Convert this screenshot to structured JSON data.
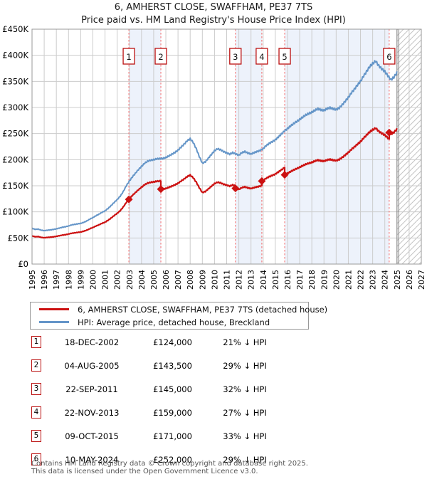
{
  "title": "6, AMHERST CLOSE, SWAFFHAM, PE37 7TS",
  "subtitle": "Price paid vs. HM Land Registry's House Price Index (HPI)",
  "legend": [
    {
      "label": "6, AMHERST CLOSE, SWAFFHAM, PE37 7TS (detached house)",
      "color": "#cc1111"
    },
    {
      "label": "HPI: Average price, detached house, Breckland",
      "color": "#6495c8"
    }
  ],
  "sales": [
    {
      "n": "1",
      "date": "18-DEC-2002",
      "price_label": "£124,000",
      "price": 124000,
      "hpi_diff": "21% ↓ HPI",
      "year": 2002.96
    },
    {
      "n": "2",
      "date": "04-AUG-2005",
      "price_label": "£143,500",
      "price": 143500,
      "hpi_diff": "29% ↓ HPI",
      "year": 2005.59
    },
    {
      "n": "3",
      "date": "22-SEP-2011",
      "price_label": "£145,000",
      "price": 145000,
      "hpi_diff": "32% ↓ HPI",
      "year": 2011.72
    },
    {
      "n": "4",
      "date": "22-NOV-2013",
      "price_label": "£159,000",
      "price": 159000,
      "hpi_diff": "27% ↓ HPI",
      "year": 2013.89
    },
    {
      "n": "5",
      "date": "09-OCT-2015",
      "price_label": "£171,000",
      "price": 171000,
      "hpi_diff": "33% ↓ HPI",
      "year": 2015.77
    },
    {
      "n": "6",
      "date": "10-MAY-2024",
      "price_label": "£252,000",
      "price": 252000,
      "hpi_diff": "29% ↓ HPI",
      "year": 2024.36
    }
  ],
  "footer": {
    "line1": "Contains HM Land Registry data © Crown copyright and database right 2025.",
    "line2": "This data is licensed under the Open Government Licence v3.0."
  },
  "chart_data": {
    "type": "line",
    "title": "6, AMHERST CLOSE, SWAFFHAM, PE37 7TS",
    "subtitle": "Price paid vs. HM Land Registry's House Price Index (HPI)",
    "xlim": [
      1995,
      2027
    ],
    "ylim": [
      0,
      450000
    ],
    "x_ticks": [
      1995,
      1996,
      1997,
      1998,
      1999,
      2000,
      2001,
      2002,
      2003,
      2004,
      2005,
      2006,
      2007,
      2008,
      2009,
      2010,
      2011,
      2012,
      2013,
      2014,
      2015,
      2016,
      2017,
      2018,
      2019,
      2020,
      2021,
      2022,
      2023,
      2024,
      2025,
      2026,
      2027
    ],
    "y_ticks": [
      "£0",
      "£50K",
      "£100K",
      "£150K",
      "£200K",
      "£250K",
      "£300K",
      "£350K",
      "£400K",
      "£450K"
    ],
    "grid": true,
    "legend_position": "below",
    "future_hatch_start": 2025,
    "shaded_bands": [
      [
        2002.96,
        2005.59
      ],
      [
        2011.72,
        2013.89
      ],
      [
        2015.77,
        2024.36
      ]
    ],
    "series": [
      {
        "name": "HPI: Average price, detached house, Breckland",
        "color": "#6495c8",
        "unit": "GBP",
        "points": [
          [
            1995.0,
            68500
          ],
          [
            1995.25,
            66500
          ],
          [
            1995.5,
            67000
          ],
          [
            1995.75,
            65000
          ],
          [
            1996.0,
            64000
          ],
          [
            1996.25,
            64800
          ],
          [
            1996.5,
            65500
          ],
          [
            1996.75,
            66300
          ],
          [
            1997.0,
            67500
          ],
          [
            1997.25,
            69000
          ],
          [
            1997.5,
            70500
          ],
          [
            1997.75,
            71500
          ],
          [
            1998.0,
            73000
          ],
          [
            1998.25,
            75000
          ],
          [
            1998.5,
            76000
          ],
          [
            1998.75,
            77000
          ],
          [
            1999.0,
            78000
          ],
          [
            1999.25,
            80000
          ],
          [
            1999.5,
            82500
          ],
          [
            1999.75,
            86000
          ],
          [
            2000.0,
            89000
          ],
          [
            2000.25,
            92500
          ],
          [
            2000.5,
            95500
          ],
          [
            2000.75,
            99000
          ],
          [
            2001.0,
            102000
          ],
          [
            2001.25,
            106500
          ],
          [
            2001.5,
            112000
          ],
          [
            2001.75,
            118000
          ],
          [
            2002.0,
            123500
          ],
          [
            2002.25,
            130000
          ],
          [
            2002.5,
            139000
          ],
          [
            2002.75,
            150000
          ],
          [
            2003.0,
            159000
          ],
          [
            2003.25,
            167000
          ],
          [
            2003.5,
            174000
          ],
          [
            2003.75,
            181000
          ],
          [
            2004.0,
            187000
          ],
          [
            2004.25,
            193000
          ],
          [
            2004.5,
            197000
          ],
          [
            2004.75,
            199000
          ],
          [
            2005.0,
            200000
          ],
          [
            2005.25,
            201500
          ],
          [
            2005.5,
            202000
          ],
          [
            2005.75,
            202500
          ],
          [
            2006.0,
            204000
          ],
          [
            2006.25,
            207000
          ],
          [
            2006.5,
            210500
          ],
          [
            2006.75,
            214000
          ],
          [
            2007.0,
            218000
          ],
          [
            2007.25,
            224000
          ],
          [
            2007.5,
            229500
          ],
          [
            2007.75,
            236000
          ],
          [
            2008.0,
            240000
          ],
          [
            2008.25,
            233000
          ],
          [
            2008.5,
            221000
          ],
          [
            2008.75,
            206000
          ],
          [
            2009.0,
            193000
          ],
          [
            2009.25,
            196000
          ],
          [
            2009.5,
            203000
          ],
          [
            2009.75,
            210000
          ],
          [
            2010.0,
            217000
          ],
          [
            2010.25,
            221000
          ],
          [
            2010.5,
            219000
          ],
          [
            2010.75,
            215500
          ],
          [
            2011.0,
            213000
          ],
          [
            2011.25,
            210500
          ],
          [
            2011.5,
            213500
          ],
          [
            2011.75,
            211000
          ],
          [
            2012.0,
            208500
          ],
          [
            2012.25,
            213500
          ],
          [
            2012.5,
            215500
          ],
          [
            2012.75,
            212500
          ],
          [
            2013.0,
            211000
          ],
          [
            2013.25,
            213500
          ],
          [
            2013.5,
            215500
          ],
          [
            2013.75,
            217500
          ],
          [
            2014.0,
            221000
          ],
          [
            2014.25,
            227000
          ],
          [
            2014.5,
            231000
          ],
          [
            2014.75,
            234500
          ],
          [
            2015.0,
            238000
          ],
          [
            2015.25,
            243500
          ],
          [
            2015.5,
            249000
          ],
          [
            2015.75,
            255000
          ],
          [
            2016.0,
            259500
          ],
          [
            2016.25,
            264500
          ],
          [
            2016.5,
            269000
          ],
          [
            2016.75,
            273000
          ],
          [
            2017.0,
            277000
          ],
          [
            2017.25,
            281500
          ],
          [
            2017.5,
            285500
          ],
          [
            2017.75,
            288500
          ],
          [
            2018.0,
            291000
          ],
          [
            2018.25,
            294500
          ],
          [
            2018.5,
            297500
          ],
          [
            2018.75,
            295500
          ],
          [
            2019.0,
            294500
          ],
          [
            2019.25,
            297500
          ],
          [
            2019.5,
            299500
          ],
          [
            2019.75,
            297500
          ],
          [
            2020.0,
            296000
          ],
          [
            2020.25,
            299000
          ],
          [
            2020.5,
            305000
          ],
          [
            2020.75,
            312000
          ],
          [
            2021.0,
            319000
          ],
          [
            2021.25,
            328000
          ],
          [
            2021.5,
            335000
          ],
          [
            2021.75,
            343000
          ],
          [
            2022.0,
            350000
          ],
          [
            2022.25,
            360000
          ],
          [
            2022.5,
            369000
          ],
          [
            2022.75,
            378000
          ],
          [
            2023.0,
            384000
          ],
          [
            2023.25,
            389000
          ],
          [
            2023.5,
            380000
          ],
          [
            2023.75,
            374000
          ],
          [
            2024.0,
            369000
          ],
          [
            2024.25,
            361000
          ],
          [
            2024.5,
            353000
          ],
          [
            2024.75,
            358000
          ],
          [
            2025.0,
            367000
          ]
        ]
      },
      {
        "name": "6, AMHERST CLOSE, SWAFFHAM, PE37 7TS (detached house)",
        "color": "#cc1111",
        "unit": "GBP",
        "derivation": "HPI series rescaled through each sale price; steps at sales 2-6",
        "sale_points": [
          [
            2002.96,
            124000
          ],
          [
            2005.59,
            143500
          ],
          [
            2011.72,
            145000
          ],
          [
            2013.89,
            159000
          ],
          [
            2015.77,
            171000
          ],
          [
            2024.36,
            252000
          ]
        ]
      }
    ],
    "colors": {
      "band_fill": "#edf2fb",
      "grid": "#cccccc",
      "plot_border": "#999999",
      "sale_dash": "#f56a6a",
      "marker_box_border": "#bb1111",
      "hatch_line": "#c4c4c4",
      "future_divider": "#808080"
    }
  }
}
